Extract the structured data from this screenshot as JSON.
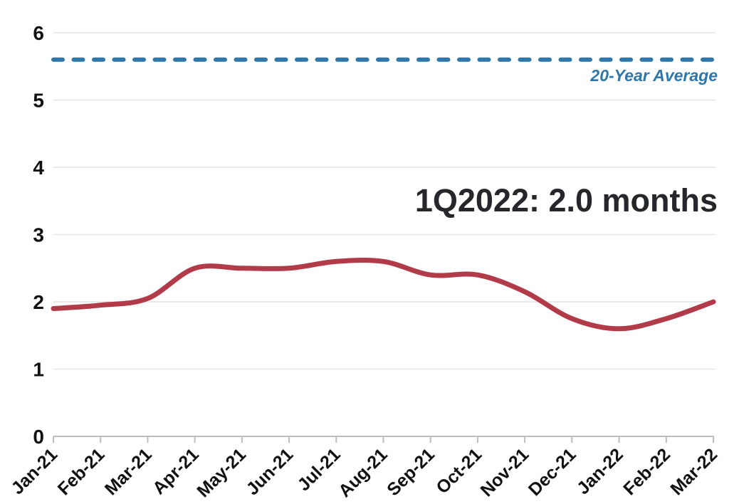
{
  "chart_data": {
    "type": "line",
    "title": "",
    "xlabel": "",
    "ylabel": "",
    "categories": [
      "Jan-21",
      "Feb-21",
      "Mar-21",
      "Apr-21",
      "May-21",
      "Jun-21",
      "Jul-21",
      "Aug-21",
      "Sep-21",
      "Oct-21",
      "Nov-21",
      "Dec-21",
      "Jan-22",
      "Feb-22",
      "Mar-22"
    ],
    "series": [
      {
        "values": [
          1.9,
          1.95,
          2.05,
          2.5,
          2.5,
          2.5,
          2.6,
          2.6,
          2.4,
          2.4,
          2.15,
          1.75,
          1.6,
          1.75,
          2.0
        ]
      }
    ],
    "ylim": [
      0,
      6
    ],
    "yticks": [
      0,
      1,
      2,
      3,
      4,
      5,
      6
    ],
    "grid": true,
    "legend_position": "none",
    "reference_line": {
      "value": 5.6,
      "label": "20-Year Average"
    },
    "annotation": "1Q2022: 2.0 months",
    "colors": {
      "line": "#b23b49",
      "reference": "#2f76a9",
      "annotation_text": "#25272b",
      "gridline": "#e4e4e4",
      "axis": "#bdbdbd",
      "tick_text": "#111111"
    }
  }
}
